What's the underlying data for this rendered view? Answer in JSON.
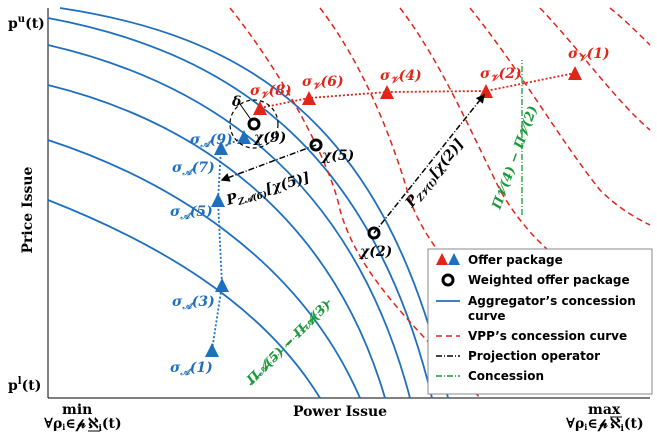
{
  "axes": {
    "y_label": "Price Issue",
    "x_label": "Power Issue",
    "y_top": "p",
    "y_top_sup": "u",
    "y_top_tail": "(t)",
    "y_bottom": "p",
    "y_bottom_sup": "l",
    "y_bottom_tail": "(t)",
    "x_left_top": "min",
    "x_left_sub": "∀ρ",
    "x_left_sub2": "i",
    "x_left_sub3": "∈𝓅",
    "x_left_expr": "ℵ",
    "x_left_expr_sub": "i",
    "x_left_tail": "(t)",
    "x_right_top": "max",
    "x_right_sub": "∀ρ",
    "x_right_sub2": "i",
    "x_right_sub3": "∈𝓅",
    "x_right_expr": "ℵ",
    "x_right_expr_sub": "i",
    "x_right_tail": "(t)"
  },
  "labels": {
    "sv1": "σ",
    "sv1_sub": "𝒱",
    "sv1_tail": "(1)",
    "sv2": "σ",
    "sv2_sub": "𝒱",
    "sv2_tail": "(2)",
    "sv4": "σ",
    "sv4_sub": "𝒱",
    "sv4_tail": "(4)",
    "sv6": "σ",
    "sv6_sub": "𝒱",
    "sv6_tail": "(6)",
    "sv8": "σ",
    "sv8_sub": "𝒱",
    "sv8_tail": "(8)",
    "sa1": "σ",
    "sa1_sub": "𝒜",
    "sa1_tail": "(1)",
    "sa3": "σ",
    "sa3_sub": "𝒜",
    "sa3_tail": "(3)",
    "sa5": "σ",
    "sa5_sub": "𝒜",
    "sa5_tail": "(5)",
    "sa7": "σ",
    "sa7_sub": "𝒜",
    "sa7_tail": "(7)",
    "sa9": "σ",
    "sa9_sub": "𝒜",
    "sa9_tail": "(9)",
    "chi2": "χ(2)",
    "chi5": "χ(5)",
    "chi9": "χ(9)",
    "delta": "δ",
    "proj_v": "P",
    "proj_v_sub": "Z𝒱(t)",
    "proj_v_tail": "[χ(2)]",
    "proj_a": "P",
    "proj_a_sub": "Z𝒜(6)",
    "proj_a_tail": "[χ(5)]",
    "conc_v": "Π𝒱(4) − Π𝒱(2)",
    "conc_a": "Π𝒜(5) − Π𝒜(3)"
  },
  "legend": {
    "items": [
      {
        "label": "Offer package"
      },
      {
        "label": "Weighted offer package"
      },
      {
        "label": "Aggregator’s concession"
      },
      {
        "label": "curve"
      },
      {
        "label": "VPP’s concession curve"
      },
      {
        "label": "Projection operator"
      },
      {
        "label": "Concession"
      }
    ]
  },
  "colors": {
    "aggregator": "#1f6fbf",
    "vpp": "#e0251b",
    "concession": "#1a9a3a",
    "projection": "#000000"
  }
}
